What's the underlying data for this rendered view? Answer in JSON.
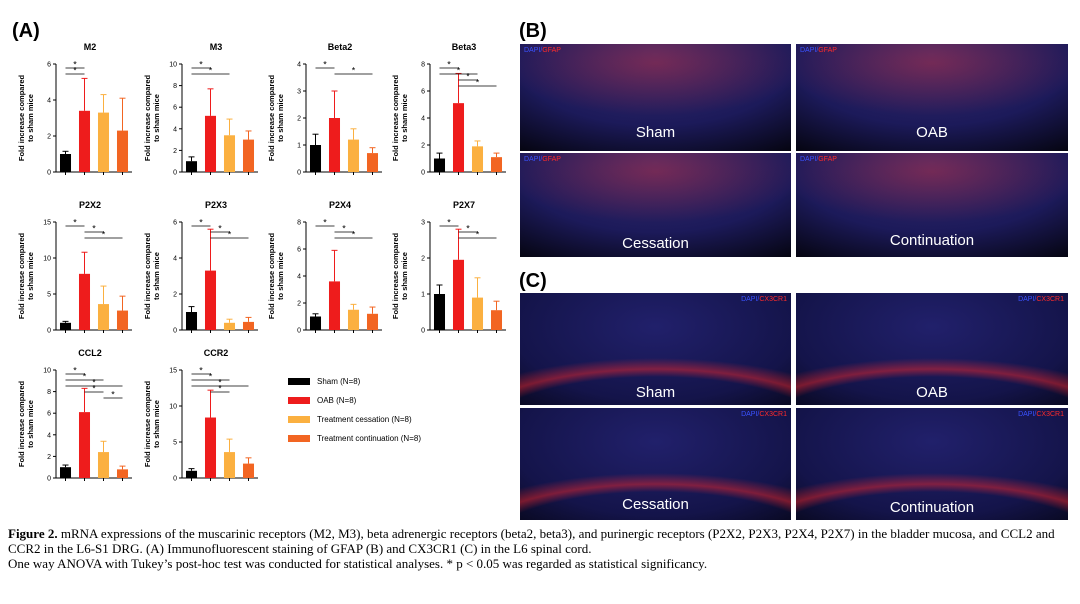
{
  "panel_labels": {
    "a": "(A)",
    "b": "(B)",
    "c": "(C)"
  },
  "legend": [
    {
      "label": "Sham (N=8)",
      "color": "#000000"
    },
    {
      "label": "OAB (N=8)",
      "color": "#ee1c1c"
    },
    {
      "label": "Treatment cessation (N=8)",
      "color": "#fbb040"
    },
    {
      "label": "Treatment continuation (N=8)",
      "color": "#f26522"
    }
  ],
  "chart_data": [
    {
      "type": "bar",
      "title": "M2",
      "ylabel": "Fold increase compared to sham mice",
      "ylim": [
        0,
        6
      ],
      "yticks": [
        "0",
        "2",
        "4",
        "6"
      ],
      "series": [
        {
          "values": [
            1.0,
            3.4,
            3.3,
            2.3
          ],
          "errors": [
            0.15,
            1.8,
            1.0,
            1.8
          ]
        }
      ],
      "significance": [
        [
          0,
          1
        ],
        [
          0,
          1
        ]
      ]
    },
    {
      "type": "bar",
      "title": "M3",
      "ylabel": "Fold increase compared to sham mice",
      "ylim": [
        0,
        10
      ],
      "yticks": [
        "0",
        "2",
        "4",
        "6",
        "8",
        "10"
      ],
      "series": [
        {
          "values": [
            1.0,
            5.2,
            3.4,
            3.0
          ],
          "errors": [
            0.4,
            2.5,
            1.5,
            0.8
          ]
        }
      ],
      "significance": [
        [
          0,
          1
        ],
        [
          0,
          2
        ]
      ]
    },
    {
      "type": "bar",
      "title": "Beta2",
      "ylabel": "Fold increase compared to sham mice",
      "ylim": [
        0,
        4
      ],
      "yticks": [
        "0",
        "1",
        "2",
        "3",
        "4"
      ],
      "series": [
        {
          "values": [
            1.0,
            2.0,
            1.2,
            0.7
          ],
          "errors": [
            0.4,
            1.0,
            0.4,
            0.2
          ]
        }
      ],
      "significance": [
        [
          0,
          1
        ],
        [
          1,
          3
        ]
      ]
    },
    {
      "type": "bar",
      "title": "Beta3",
      "ylabel": "Fold increase compared to sham mice",
      "ylim": [
        0,
        8
      ],
      "yticks": [
        "0",
        "2",
        "4",
        "6",
        "8"
      ],
      "series": [
        {
          "values": [
            1.0,
            5.1,
            1.9,
            1.1
          ],
          "errors": [
            0.4,
            2.2,
            0.4,
            0.3
          ]
        }
      ],
      "significance": [
        [
          0,
          1
        ],
        [
          0,
          2
        ],
        [
          1,
          2
        ],
        [
          1,
          3
        ]
      ]
    },
    {
      "type": "bar",
      "title": "P2X2",
      "ylabel": "Fold increase compared to sham mice",
      "ylim": [
        0,
        15
      ],
      "yticks": [
        "0",
        "5",
        "10",
        "15"
      ],
      "series": [
        {
          "values": [
            1.0,
            7.8,
            3.6,
            2.7
          ],
          "errors": [
            0.2,
            3.0,
            2.5,
            2.0
          ]
        }
      ],
      "significance": [
        [
          0,
          1
        ],
        [
          1,
          2
        ],
        [
          1,
          3
        ]
      ]
    },
    {
      "type": "bar",
      "title": "P2X3",
      "ylabel": "Fold increase compared to sham mice",
      "ylim": [
        0,
        6
      ],
      "yticks": [
        "0",
        "2",
        "4",
        "6"
      ],
      "series": [
        {
          "values": [
            1.0,
            3.3,
            0.4,
            0.45
          ],
          "errors": [
            0.3,
            2.3,
            0.2,
            0.25
          ]
        }
      ],
      "significance": [
        [
          0,
          1
        ],
        [
          1,
          2
        ],
        [
          1,
          3
        ]
      ]
    },
    {
      "type": "bar",
      "title": "P2X4",
      "ylabel": "Fold increase compared to sham mice",
      "ylim": [
        0,
        8
      ],
      "yticks": [
        "0",
        "2",
        "4",
        "6",
        "8"
      ],
      "series": [
        {
          "values": [
            1.0,
            3.6,
            1.5,
            1.2
          ],
          "errors": [
            0.2,
            2.3,
            0.4,
            0.5
          ]
        }
      ],
      "significance": [
        [
          0,
          1
        ],
        [
          1,
          2
        ],
        [
          1,
          3
        ]
      ]
    },
    {
      "type": "bar",
      "title": "P2X7",
      "ylabel": "Fold increase compared to sham mice",
      "ylim": [
        0,
        3
      ],
      "yticks": [
        "0",
        "1",
        "2",
        "3"
      ],
      "series": [
        {
          "values": [
            1.0,
            1.95,
            0.9,
            0.55
          ],
          "errors": [
            0.25,
            0.85,
            0.55,
            0.25
          ]
        }
      ],
      "significance": [
        [
          0,
          1
        ],
        [
          1,
          2
        ],
        [
          1,
          3
        ]
      ]
    },
    {
      "type": "bar",
      "title": "CCL2",
      "ylabel": "Fold increase compared to sham mice",
      "ylim": [
        0,
        10
      ],
      "yticks": [
        "0",
        "2",
        "4",
        "6",
        "8",
        "10"
      ],
      "series": [
        {
          "values": [
            1.0,
            6.1,
            2.4,
            0.8
          ],
          "errors": [
            0.2,
            2.2,
            1.0,
            0.3
          ]
        }
      ],
      "significance": [
        [
          0,
          1
        ],
        [
          0,
          2
        ],
        [
          0,
          3
        ],
        [
          1,
          2
        ],
        [
          2,
          3
        ]
      ]
    },
    {
      "type": "bar",
      "title": "CCR2",
      "ylabel": "Fold increase compared to sham mice",
      "ylim": [
        0,
        15
      ],
      "yticks": [
        "0",
        "5",
        "10",
        "15"
      ],
      "series": [
        {
          "values": [
            1.0,
            8.4,
            3.6,
            2.0
          ],
          "errors": [
            0.3,
            3.8,
            1.8,
            0.8
          ]
        }
      ],
      "significance": [
        [
          0,
          1
        ],
        [
          0,
          2
        ],
        [
          0,
          3
        ],
        [
          1,
          2
        ]
      ]
    }
  ],
  "micrographs": {
    "b": [
      {
        "tag_blue": "DAPI",
        "tag_sep": "/",
        "tag_red": "GFAP",
        "label": "Sham"
      },
      {
        "tag_blue": "DAPI",
        "tag_sep": "/",
        "tag_red": "GFAP",
        "label": "OAB"
      },
      {
        "tag_blue": "DAPI",
        "tag_sep": "/",
        "tag_red": "GFAP",
        "label": "Cessation"
      },
      {
        "tag_blue": "DAPI",
        "tag_sep": "/",
        "tag_red": "GFAP",
        "label": "Continuation"
      }
    ],
    "c": [
      {
        "tag_blue": "DAPI",
        "tag_sep": "/",
        "tag_red": "CX3CR1",
        "label": "Sham"
      },
      {
        "tag_blue": "DAPI",
        "tag_sep": "/",
        "tag_red": "CX3CR1",
        "label": "OAB"
      },
      {
        "tag_blue": "DAPI",
        "tag_sep": "/",
        "tag_red": "CX3CR1",
        "label": "Cessation"
      },
      {
        "tag_blue": "DAPI",
        "tag_sep": "/",
        "tag_red": "CX3CR1",
        "label": "Continuation"
      }
    ]
  },
  "caption": {
    "figure_label": "Figure 2.",
    "line1": " mRNA expressions of the muscarinic receptors (M2, M3), beta adrenergic receptors (beta2, beta3), and purinergic receptors (P2X2, P2X3, P2X4, P2X7) in the bladder mucosa, and CCL2 and CCR2 in the L6-S1 DRG. (A) Immunofluorescent staining of GFAP (B) and CX3CR1 (C) in the  L6 spinal cord.",
    "line2": "One way ANOVA with Tukey’s post-hoc test was conducted for statistical analyses. * p < 0.05 was regarded as statistical significancy."
  }
}
